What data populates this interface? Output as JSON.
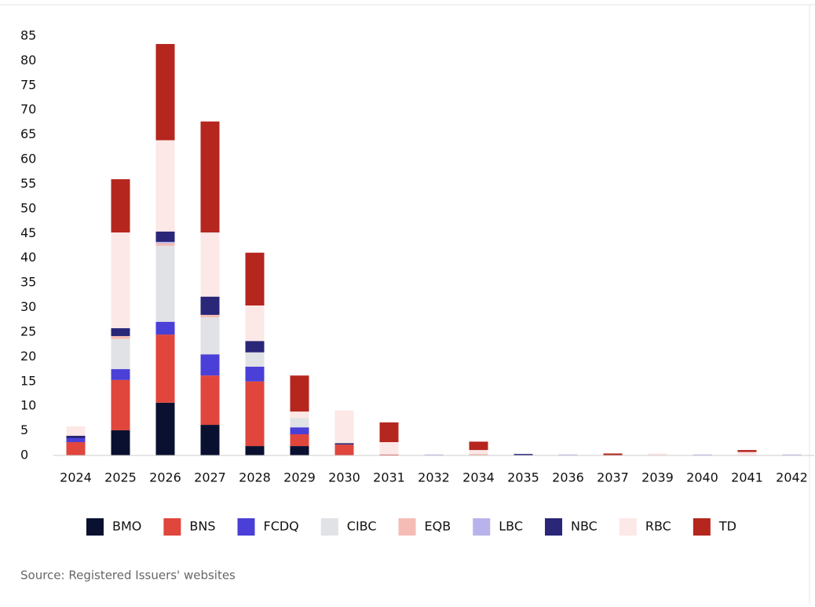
{
  "chart_data": {
    "type": "stacked_bar",
    "categories": [
      "2024",
      "2025",
      "2026",
      "2027",
      "2028",
      "2029",
      "2030",
      "2031",
      "2032",
      "2034",
      "2035",
      "2036",
      "2037",
      "2039",
      "2040",
      "2041",
      "2042"
    ],
    "series": [
      {
        "name": "BMO",
        "color": "#0a1030",
        "values": [
          0,
          5.1,
          10.7,
          6.2,
          1.9,
          1.9,
          0,
          0,
          0,
          0,
          0,
          0,
          0,
          0,
          0,
          0,
          0
        ]
      },
      {
        "name": "BNS",
        "color": "#e0463c",
        "values": [
          2.7,
          10.2,
          13.8,
          10,
          13.1,
          2.4,
          2.2,
          0.2,
          0,
          0,
          0,
          0,
          0,
          0,
          0,
          0,
          0
        ]
      },
      {
        "name": "FCDQ",
        "color": "#4a3fd6",
        "values": [
          0.8,
          2.2,
          2.6,
          4.3,
          3,
          1.4,
          0,
          0,
          0,
          0,
          0,
          0,
          0,
          0,
          0,
          0,
          0
        ]
      },
      {
        "name": "CIBC",
        "color": "#e0e2e5",
        "values": [
          0,
          6.1,
          15.4,
          7.5,
          2.9,
          1.9,
          0,
          0,
          0,
          0,
          0,
          0,
          0,
          0,
          0,
          0,
          0
        ]
      },
      {
        "name": "EQB",
        "color": "#f5bcb5",
        "values": [
          0,
          0.6,
          0.5,
          0.5,
          0,
          0,
          0,
          0,
          0,
          0.3,
          0,
          0,
          0,
          0,
          0,
          0,
          0
        ]
      },
      {
        "name": "LBC",
        "color": "#b8b3ea",
        "values": [
          0,
          0,
          0.3,
          0,
          0,
          0,
          0,
          0,
          0.2,
          0,
          0,
          0.2,
          0,
          0,
          0.2,
          0,
          0.2
        ]
      },
      {
        "name": "NBC",
        "color": "#2a2678",
        "values": [
          0.5,
          1.6,
          2.1,
          3.7,
          2.3,
          0,
          0.3,
          0,
          0,
          0,
          0.3,
          0,
          0,
          0,
          0,
          0,
          0
        ]
      },
      {
        "name": "RBC",
        "color": "#fce8e6",
        "values": [
          1.9,
          19.4,
          18.5,
          13,
          7.2,
          1.3,
          6.6,
          2.5,
          0,
          0.8,
          0,
          0,
          0,
          0.4,
          0,
          0.7,
          0
        ]
      },
      {
        "name": "TD",
        "color": "#b5261e",
        "values": [
          0,
          10.8,
          19.5,
          22.5,
          10.7,
          7.3,
          0,
          4,
          0,
          1.7,
          0,
          0,
          0.4,
          0,
          0,
          0.4,
          0
        ]
      }
    ],
    "ylim": [
      0,
      85
    ],
    "yticks": [
      0,
      5,
      10,
      15,
      20,
      25,
      30,
      35,
      40,
      45,
      50,
      55,
      60,
      65,
      70,
      75,
      80,
      85
    ],
    "source": "Source: Registered Issuers' websites"
  }
}
